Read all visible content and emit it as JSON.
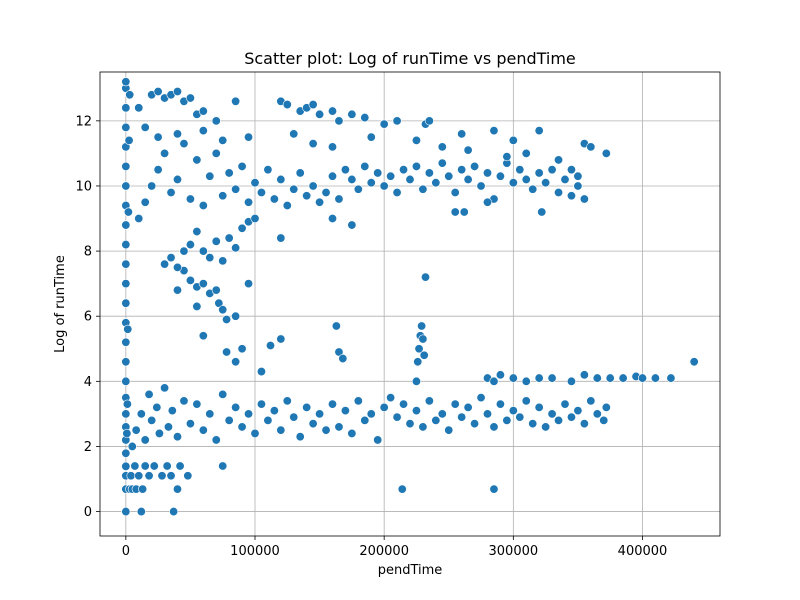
{
  "chart_data": {
    "type": "scatter",
    "title": "Scatter plot: Log of runTime vs pendTime",
    "xlabel": "pendTime",
    "ylabel": "Log of runTime",
    "xlim": [
      -20000,
      460000
    ],
    "ylim": [
      -0.75,
      13.5
    ],
    "xticks": [
      0,
      100000,
      200000,
      300000,
      400000
    ],
    "xtick_labels": [
      "0",
      "100000",
      "200000",
      "300000",
      "400000"
    ],
    "yticks": [
      0,
      2,
      4,
      6,
      8,
      10,
      12
    ],
    "ytick_labels": [
      "0",
      "2",
      "4",
      "6",
      "8",
      "10",
      "12"
    ],
    "grid": true,
    "legend": "none",
    "marker_color": "#1f77b4",
    "marker_edge": "#ffffff",
    "points": [
      [
        0,
        0.0
      ],
      [
        0,
        0.69
      ],
      [
        0,
        1.1
      ],
      [
        0,
        1.39
      ],
      [
        0,
        1.79
      ],
      [
        0,
        2.2
      ],
      [
        0,
        2.6
      ],
      [
        0,
        3.0
      ],
      [
        0,
        3.5
      ],
      [
        0,
        4.0
      ],
      [
        0,
        4.6
      ],
      [
        0,
        5.2
      ],
      [
        0,
        5.8
      ],
      [
        0,
        6.4
      ],
      [
        0,
        7.0
      ],
      [
        0,
        7.6
      ],
      [
        0,
        8.2
      ],
      [
        0,
        8.8
      ],
      [
        0,
        9.4
      ],
      [
        0,
        10.0
      ],
      [
        0,
        10.6
      ],
      [
        0,
        11.2
      ],
      [
        0,
        11.8
      ],
      [
        0,
        12.4
      ],
      [
        0,
        13.0
      ],
      [
        0,
        13.2
      ],
      [
        800,
        2.4
      ],
      [
        1200,
        3.3
      ],
      [
        1500,
        5.6
      ],
      [
        2000,
        9.2
      ],
      [
        2500,
        11.4
      ],
      [
        3000,
        12.8
      ],
      [
        3000,
        0.69
      ],
      [
        5000,
        0.69
      ],
      [
        8000,
        0.69
      ],
      [
        12000,
        0.0
      ],
      [
        13000,
        0.69
      ],
      [
        37000,
        0.0
      ],
      [
        40000,
        0.69
      ],
      [
        4000,
        1.1
      ],
      [
        7000,
        1.4
      ],
      [
        10000,
        1.1
      ],
      [
        15000,
        1.4
      ],
      [
        18000,
        1.1
      ],
      [
        22000,
        1.4
      ],
      [
        28000,
        1.1
      ],
      [
        32000,
        1.4
      ],
      [
        35000,
        1.1
      ],
      [
        42000,
        1.4
      ],
      [
        48000,
        1.1
      ],
      [
        75000,
        1.4
      ],
      [
        5000,
        2.0
      ],
      [
        8000,
        2.5
      ],
      [
        12000,
        3.0
      ],
      [
        15000,
        2.2
      ],
      [
        18000,
        3.6
      ],
      [
        20000,
        2.8
      ],
      [
        24000,
        3.2
      ],
      [
        26000,
        2.4
      ],
      [
        30000,
        3.8
      ],
      [
        33000,
        2.6
      ],
      [
        36000,
        3.1
      ],
      [
        40000,
        2.3
      ],
      [
        45000,
        3.4
      ],
      [
        50000,
        2.7
      ],
      [
        55000,
        3.3
      ],
      [
        60000,
        2.5
      ],
      [
        65000,
        3.0
      ],
      [
        70000,
        2.2
      ],
      [
        75000,
        3.6
      ],
      [
        80000,
        2.8
      ],
      [
        85000,
        3.2
      ],
      [
        90000,
        2.6
      ],
      [
        95000,
        3.0
      ],
      [
        100000,
        2.4
      ],
      [
        105000,
        3.3
      ],
      [
        110000,
        2.8
      ],
      [
        115000,
        3.1
      ],
      [
        120000,
        2.5
      ],
      [
        125000,
        3.4
      ],
      [
        130000,
        2.9
      ],
      [
        135000,
        2.3
      ],
      [
        140000,
        3.2
      ],
      [
        145000,
        2.7
      ],
      [
        150000,
        3.0
      ],
      [
        155000,
        2.5
      ],
      [
        160000,
        3.3
      ],
      [
        165000,
        2.6
      ],
      [
        170000,
        3.1
      ],
      [
        175000,
        2.4
      ],
      [
        180000,
        3.4
      ],
      [
        185000,
        2.8
      ],
      [
        190000,
        3.0
      ],
      [
        195000,
        2.2
      ],
      [
        200000,
        3.2
      ],
      [
        205000,
        3.5
      ],
      [
        210000,
        2.9
      ],
      [
        215000,
        3.3
      ],
      [
        220000,
        2.7
      ],
      [
        225000,
        3.1
      ],
      [
        230000,
        2.6
      ],
      [
        235000,
        3.4
      ],
      [
        240000,
        2.8
      ],
      [
        245000,
        3.0
      ],
      [
        250000,
        2.5
      ],
      [
        255000,
        3.3
      ],
      [
        260000,
        2.9
      ],
      [
        265000,
        3.2
      ],
      [
        270000,
        2.7
      ],
      [
        275000,
        3.5
      ],
      [
        280000,
        3.0
      ],
      [
        285000,
        2.6
      ],
      [
        290000,
        3.3
      ],
      [
        295000,
        2.8
      ],
      [
        300000,
        3.1
      ],
      [
        305000,
        2.9
      ],
      [
        310000,
        3.4
      ],
      [
        315000,
        2.7
      ],
      [
        320000,
        3.2
      ],
      [
        325000,
        2.6
      ],
      [
        330000,
        3.0
      ],
      [
        335000,
        2.8
      ],
      [
        340000,
        3.3
      ],
      [
        345000,
        2.9
      ],
      [
        350000,
        3.1
      ],
      [
        355000,
        2.7
      ],
      [
        360000,
        3.4
      ],
      [
        365000,
        3.0
      ],
      [
        370000,
        2.8
      ],
      [
        372000,
        3.2
      ],
      [
        280000,
        4.1
      ],
      [
        285000,
        4.0
      ],
      [
        290000,
        4.2
      ],
      [
        300000,
        4.1
      ],
      [
        310000,
        4.0
      ],
      [
        320000,
        4.1
      ],
      [
        330000,
        4.1
      ],
      [
        345000,
        4.0
      ],
      [
        355000,
        4.2
      ],
      [
        365000,
        4.1
      ],
      [
        375000,
        4.1
      ],
      [
        385000,
        4.1
      ],
      [
        395000,
        4.15
      ],
      [
        400000,
        4.1
      ],
      [
        410000,
        4.1
      ],
      [
        422000,
        4.1
      ],
      [
        440000,
        4.6
      ],
      [
        225000,
        4.0
      ],
      [
        226000,
        4.6
      ],
      [
        227000,
        5.0
      ],
      [
        228000,
        5.4
      ],
      [
        229000,
        5.7
      ],
      [
        230000,
        5.3
      ],
      [
        231000,
        4.8
      ],
      [
        232000,
        7.2
      ],
      [
        214000,
        0.69
      ],
      [
        285000,
        0.69
      ],
      [
        163000,
        5.7
      ],
      [
        165000,
        4.9
      ],
      [
        168000,
        4.7
      ],
      [
        120000,
        5.3
      ],
      [
        112000,
        5.1
      ],
      [
        105000,
        4.3
      ],
      [
        90000,
        5.0
      ],
      [
        85000,
        4.6
      ],
      [
        78000,
        4.9
      ],
      [
        95000,
        7.0
      ],
      [
        60000,
        5.4
      ],
      [
        55000,
        6.3
      ],
      [
        40000,
        6.8
      ],
      [
        45000,
        7.4
      ],
      [
        50000,
        7.1
      ],
      [
        55000,
        6.9
      ],
      [
        60000,
        7.0
      ],
      [
        65000,
        6.7
      ],
      [
        70000,
        6.8
      ],
      [
        72000,
        6.4
      ],
      [
        75000,
        6.2
      ],
      [
        78000,
        5.9
      ],
      [
        85000,
        6.0
      ],
      [
        30000,
        7.6
      ],
      [
        35000,
        7.8
      ],
      [
        40000,
        7.5
      ],
      [
        45000,
        8.0
      ],
      [
        50000,
        8.2
      ],
      [
        55000,
        8.6
      ],
      [
        60000,
        8.0
      ],
      [
        65000,
        7.8
      ],
      [
        70000,
        8.3
      ],
      [
        75000,
        7.7
      ],
      [
        80000,
        8.4
      ],
      [
        85000,
        8.1
      ],
      [
        90000,
        8.7
      ],
      [
        95000,
        8.9
      ],
      [
        100000,
        9.0
      ],
      [
        120000,
        8.4
      ],
      [
        10000,
        9.0
      ],
      [
        15000,
        9.5
      ],
      [
        20000,
        10.0
      ],
      [
        25000,
        10.5
      ],
      [
        30000,
        11.0
      ],
      [
        35000,
        9.8
      ],
      [
        40000,
        10.2
      ],
      [
        45000,
        11.3
      ],
      [
        50000,
        9.6
      ],
      [
        55000,
        10.8
      ],
      [
        60000,
        9.4
      ],
      [
        65000,
        10.3
      ],
      [
        70000,
        11.0
      ],
      [
        75000,
        9.7
      ],
      [
        80000,
        10.4
      ],
      [
        85000,
        9.9
      ],
      [
        90000,
        10.6
      ],
      [
        95000,
        9.5
      ],
      [
        100000,
        10.1
      ],
      [
        105000,
        9.8
      ],
      [
        110000,
        10.5
      ],
      [
        115000,
        9.6
      ],
      [
        120000,
        10.2
      ],
      [
        125000,
        9.4
      ],
      [
        130000,
        9.9
      ],
      [
        135000,
        10.4
      ],
      [
        140000,
        9.7
      ],
      [
        145000,
        10.0
      ],
      [
        150000,
        9.5
      ],
      [
        155000,
        9.8
      ],
      [
        160000,
        10.3
      ],
      [
        165000,
        9.6
      ],
      [
        170000,
        10.5
      ],
      [
        175000,
        10.2
      ],
      [
        180000,
        9.9
      ],
      [
        185000,
        10.6
      ],
      [
        190000,
        10.1
      ],
      [
        195000,
        10.4
      ],
      [
        200000,
        10.0
      ],
      [
        205000,
        10.3
      ],
      [
        210000,
        9.8
      ],
      [
        215000,
        10.5
      ],
      [
        220000,
        10.2
      ],
      [
        225000,
        10.6
      ],
      [
        230000,
        9.9
      ],
      [
        235000,
        10.4
      ],
      [
        240000,
        10.1
      ],
      [
        245000,
        10.7
      ],
      [
        250000,
        10.3
      ],
      [
        255000,
        9.8
      ],
      [
        260000,
        10.5
      ],
      [
        265000,
        10.2
      ],
      [
        270000,
        10.6
      ],
      [
        275000,
        10.0
      ],
      [
        280000,
        10.4
      ],
      [
        285000,
        9.6
      ],
      [
        290000,
        10.3
      ],
      [
        295000,
        10.7
      ],
      [
        300000,
        10.1
      ],
      [
        305000,
        10.5
      ],
      [
        310000,
        10.2
      ],
      [
        315000,
        9.9
      ],
      [
        320000,
        10.4
      ],
      [
        325000,
        10.1
      ],
      [
        330000,
        10.5
      ],
      [
        335000,
        9.8
      ],
      [
        340000,
        10.2
      ],
      [
        345000,
        9.7
      ],
      [
        350000,
        10.0
      ],
      [
        355000,
        9.6
      ],
      [
        10000,
        12.4
      ],
      [
        20000,
        12.8
      ],
      [
        25000,
        12.9
      ],
      [
        30000,
        12.7
      ],
      [
        35000,
        12.8
      ],
      [
        40000,
        12.9
      ],
      [
        45000,
        12.6
      ],
      [
        50000,
        12.7
      ],
      [
        55000,
        12.2
      ],
      [
        60000,
        12.3
      ],
      [
        70000,
        12.0
      ],
      [
        85000,
        12.6
      ],
      [
        120000,
        12.6
      ],
      [
        125000,
        12.5
      ],
      [
        135000,
        12.3
      ],
      [
        140000,
        12.4
      ],
      [
        145000,
        12.5
      ],
      [
        150000,
        12.2
      ],
      [
        160000,
        12.3
      ],
      [
        165000,
        12.0
      ],
      [
        175000,
        12.2
      ],
      [
        185000,
        12.1
      ],
      [
        200000,
        11.9
      ],
      [
        210000,
        12.0
      ],
      [
        232000,
        11.9
      ],
      [
        235000,
        12.0
      ],
      [
        260000,
        11.6
      ],
      [
        285000,
        11.7
      ],
      [
        300000,
        11.4
      ],
      [
        320000,
        11.7
      ],
      [
        355000,
        11.3
      ],
      [
        360000,
        11.2
      ],
      [
        372000,
        11.0
      ],
      [
        15000,
        11.8
      ],
      [
        25000,
        11.5
      ],
      [
        40000,
        11.6
      ],
      [
        60000,
        11.7
      ],
      [
        75000,
        11.4
      ],
      [
        95000,
        11.5
      ],
      [
        130000,
        11.6
      ],
      [
        145000,
        11.3
      ],
      [
        160000,
        11.2
      ],
      [
        190000,
        11.5
      ],
      [
        225000,
        11.4
      ],
      [
        245000,
        11.2
      ],
      [
        265000,
        11.1
      ],
      [
        295000,
        10.9
      ],
      [
        310000,
        11.0
      ],
      [
        335000,
        10.8
      ],
      [
        345000,
        10.5
      ],
      [
        350000,
        10.3
      ],
      [
        262000,
        9.2
      ],
      [
        255000,
        9.2
      ],
      [
        280000,
        9.5
      ],
      [
        322000,
        9.2
      ],
      [
        175000,
        8.8
      ],
      [
        160000,
        9.0
      ]
    ]
  }
}
